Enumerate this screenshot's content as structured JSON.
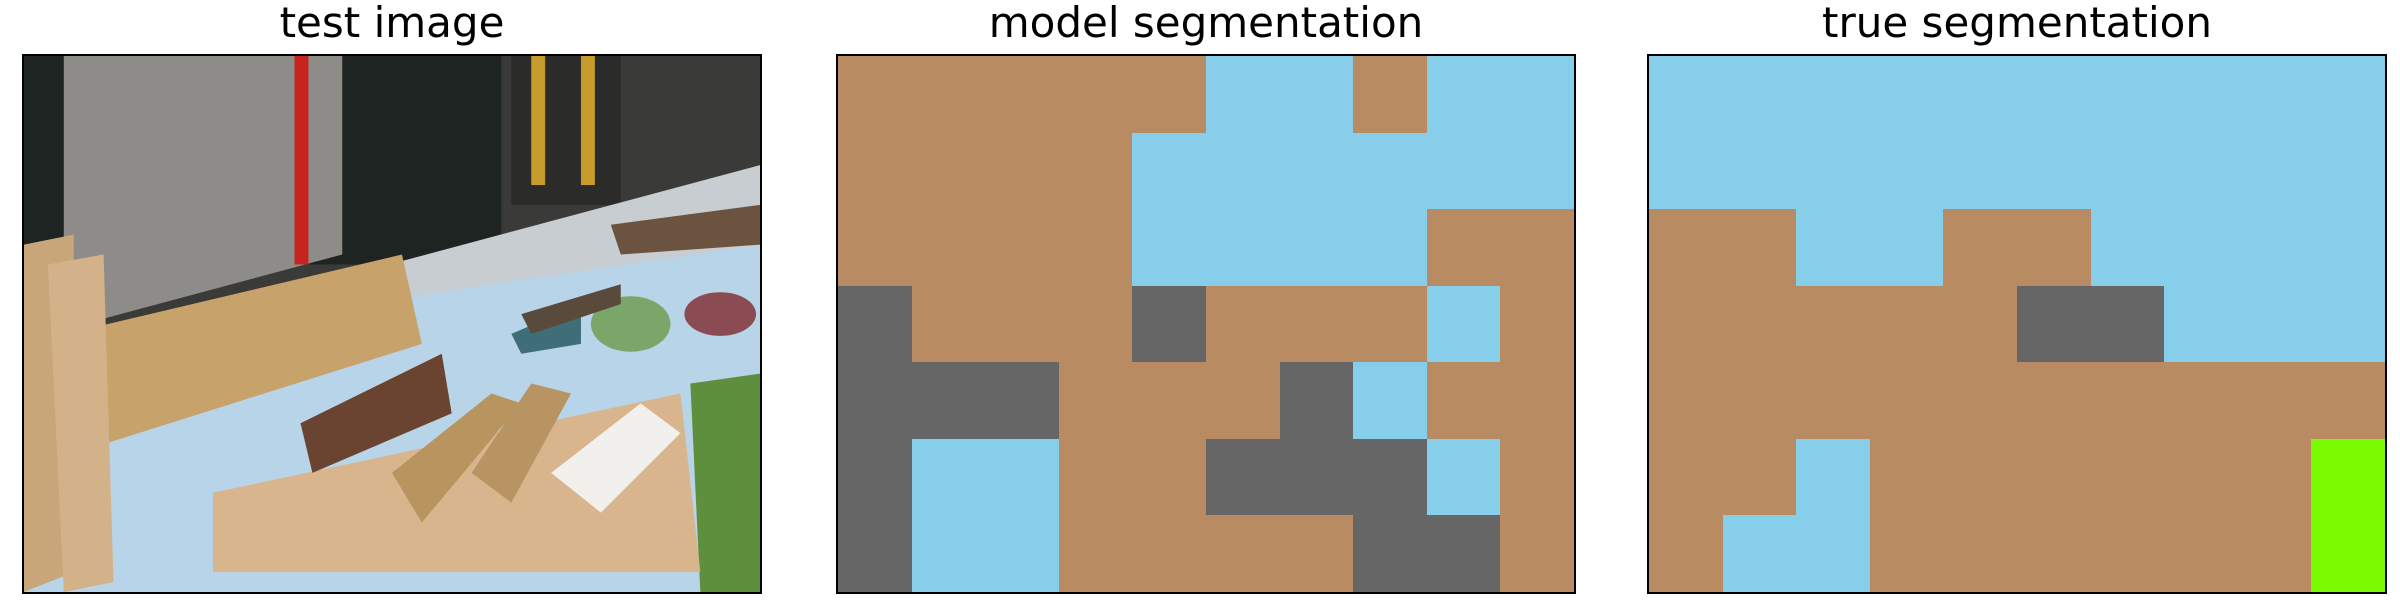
{
  "panels": {
    "test": {
      "title": "test image"
    },
    "model": {
      "title": "model segmentation"
    },
    "true": {
      "title": "true segmentation"
    }
  },
  "palette": {
    "tan": "#B98B62",
    "sky": "#87CEEB",
    "gray": "#666666",
    "lime": "#7CFC00"
  },
  "segmentation": {
    "rows": 7,
    "cols": 10,
    "model": [
      [
        "tan",
        "tan",
        "tan",
        "tan",
        "tan",
        "sky",
        "sky",
        "tan",
        "sky",
        "sky"
      ],
      [
        "tan",
        "tan",
        "tan",
        "tan",
        "sky",
        "sky",
        "sky",
        "sky",
        "sky",
        "sky"
      ],
      [
        "tan",
        "tan",
        "tan",
        "tan",
        "sky",
        "sky",
        "sky",
        "sky",
        "tan",
        "tan"
      ],
      [
        "gray",
        "tan",
        "tan",
        "tan",
        "gray",
        "tan",
        "tan",
        "tan",
        "sky",
        "tan"
      ],
      [
        "gray",
        "gray",
        "gray",
        "tan",
        "tan",
        "tan",
        "gray",
        "sky",
        "tan",
        "tan"
      ],
      [
        "gray",
        "sky",
        "sky",
        "tan",
        "tan",
        "gray",
        "gray",
        "gray",
        "sky",
        "tan"
      ],
      [
        "gray",
        "sky",
        "sky",
        "tan",
        "tan",
        "tan",
        "tan",
        "gray",
        "gray",
        "tan"
      ]
    ],
    "truth": [
      [
        "sky",
        "sky",
        "sky",
        "sky",
        "sky",
        "sky",
        "sky",
        "sky",
        "sky",
        "sky"
      ],
      [
        "sky",
        "sky",
        "sky",
        "sky",
        "sky",
        "sky",
        "sky",
        "sky",
        "sky",
        "sky"
      ],
      [
        "tan",
        "tan",
        "sky",
        "sky",
        "tan",
        "tan",
        "sky",
        "sky",
        "sky",
        "sky"
      ],
      [
        "tan",
        "tan",
        "tan",
        "tan",
        "tan",
        "gray",
        "gray",
        "sky",
        "sky",
        "sky"
      ],
      [
        "tan",
        "tan",
        "tan",
        "tan",
        "tan",
        "tan",
        "tan",
        "tan",
        "tan",
        "tan"
      ],
      [
        "tan",
        "tan",
        "sky",
        "tan",
        "tan",
        "tan",
        "tan",
        "tan",
        "tan",
        "lime"
      ],
      [
        "tan",
        "sky",
        "sky",
        "tan",
        "tan",
        "tan",
        "tan",
        "tan",
        "tan",
        "lime"
      ]
    ]
  }
}
